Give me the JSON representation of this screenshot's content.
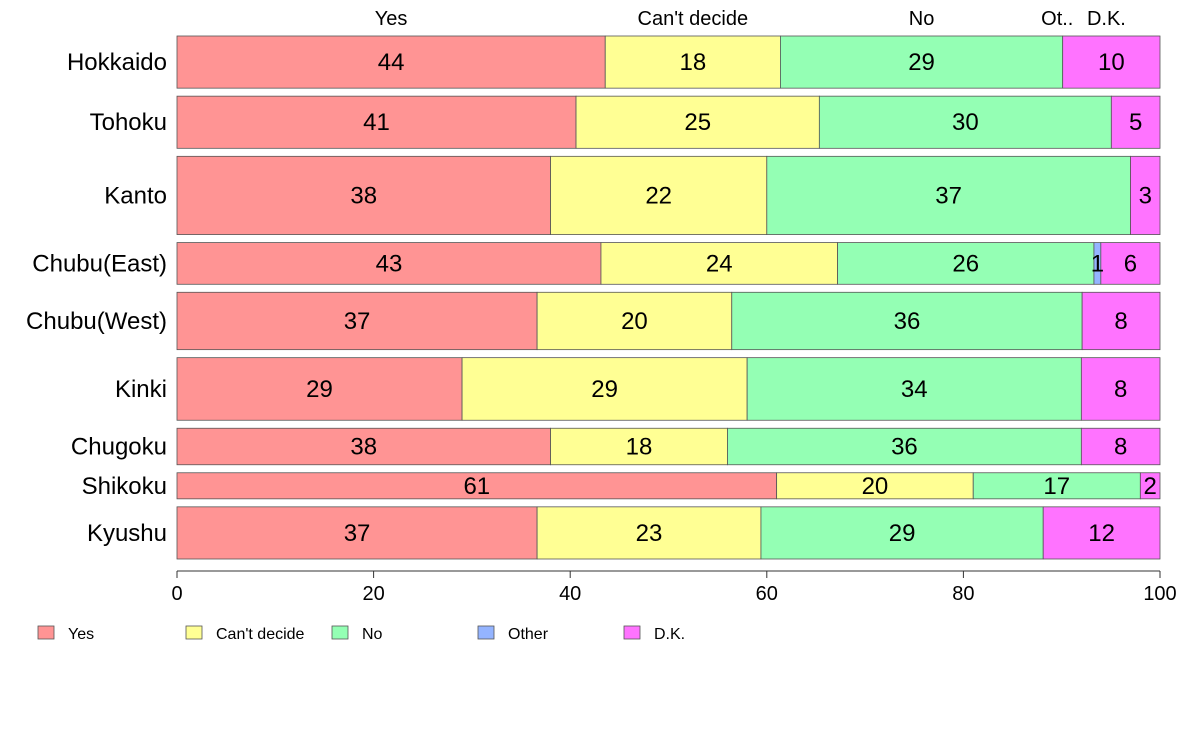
{
  "chart_data": {
    "type": "bar",
    "orientation": "horizontal",
    "stacked": true,
    "title": "",
    "xlabel": "",
    "ylabel": "",
    "xlim": [
      0,
      100
    ],
    "x_ticks": [
      0,
      20,
      40,
      60,
      80,
      100
    ],
    "categories": [
      "Hokkaido",
      "Tohoku",
      "Kanto",
      "Chubu(East)",
      "Chubu(West)",
      "Kinki",
      "Chugoku",
      "Shikoku",
      "Kyushu"
    ],
    "bar_thickness_relative": [
      1,
      1,
      1.5,
      0.8,
      1.1,
      1.2,
      0.7,
      0.5,
      1
    ],
    "series": [
      {
        "name": "Yes",
        "color": "#ff9494",
        "values": [
          44,
          41,
          38,
          43,
          37,
          29,
          38,
          61,
          37
        ]
      },
      {
        "name": "Can't decide",
        "color": "#ffff94",
        "values": [
          18,
          25,
          22,
          24,
          20,
          29,
          18,
          20,
          23
        ]
      },
      {
        "name": "No",
        "color": "#94ffb4",
        "values": [
          29,
          30,
          37,
          26,
          36,
          34,
          36,
          17,
          29
        ]
      },
      {
        "name": "Other",
        "color": "#94b4ff",
        "values": [
          0,
          0,
          0,
          0.7,
          0,
          0,
          0,
          0,
          0
        ]
      },
      {
        "name": "D.K.",
        "color": "#ff73ff",
        "values": [
          10,
          5,
          3,
          6,
          8,
          8,
          8,
          2,
          12
        ]
      }
    ],
    "segment_labels": [
      [
        "44",
        "18",
        "29",
        "",
        "10"
      ],
      [
        "41",
        "25",
        "30",
        "",
        "5"
      ],
      [
        "38",
        "22",
        "37",
        "",
        "3"
      ],
      [
        "43",
        "24",
        "26",
        "1",
        "6"
      ],
      [
        "37",
        "20",
        "36",
        "",
        "8"
      ],
      [
        "29",
        "29",
        "34",
        "",
        "8"
      ],
      [
        "38",
        "18",
        "36",
        "",
        "8"
      ],
      [
        "61",
        "20",
        "17",
        "",
        "2"
      ],
      [
        "37",
        "23",
        "29",
        "",
        "12"
      ]
    ],
    "top_labels": [
      "Yes",
      "Can't decide",
      "No",
      "Ot..",
      "D.K."
    ],
    "legend": {
      "position": "bottom-left",
      "entries": [
        "Yes",
        "Can't decide",
        "No",
        "Other",
        "D.K."
      ]
    },
    "grid": false
  }
}
